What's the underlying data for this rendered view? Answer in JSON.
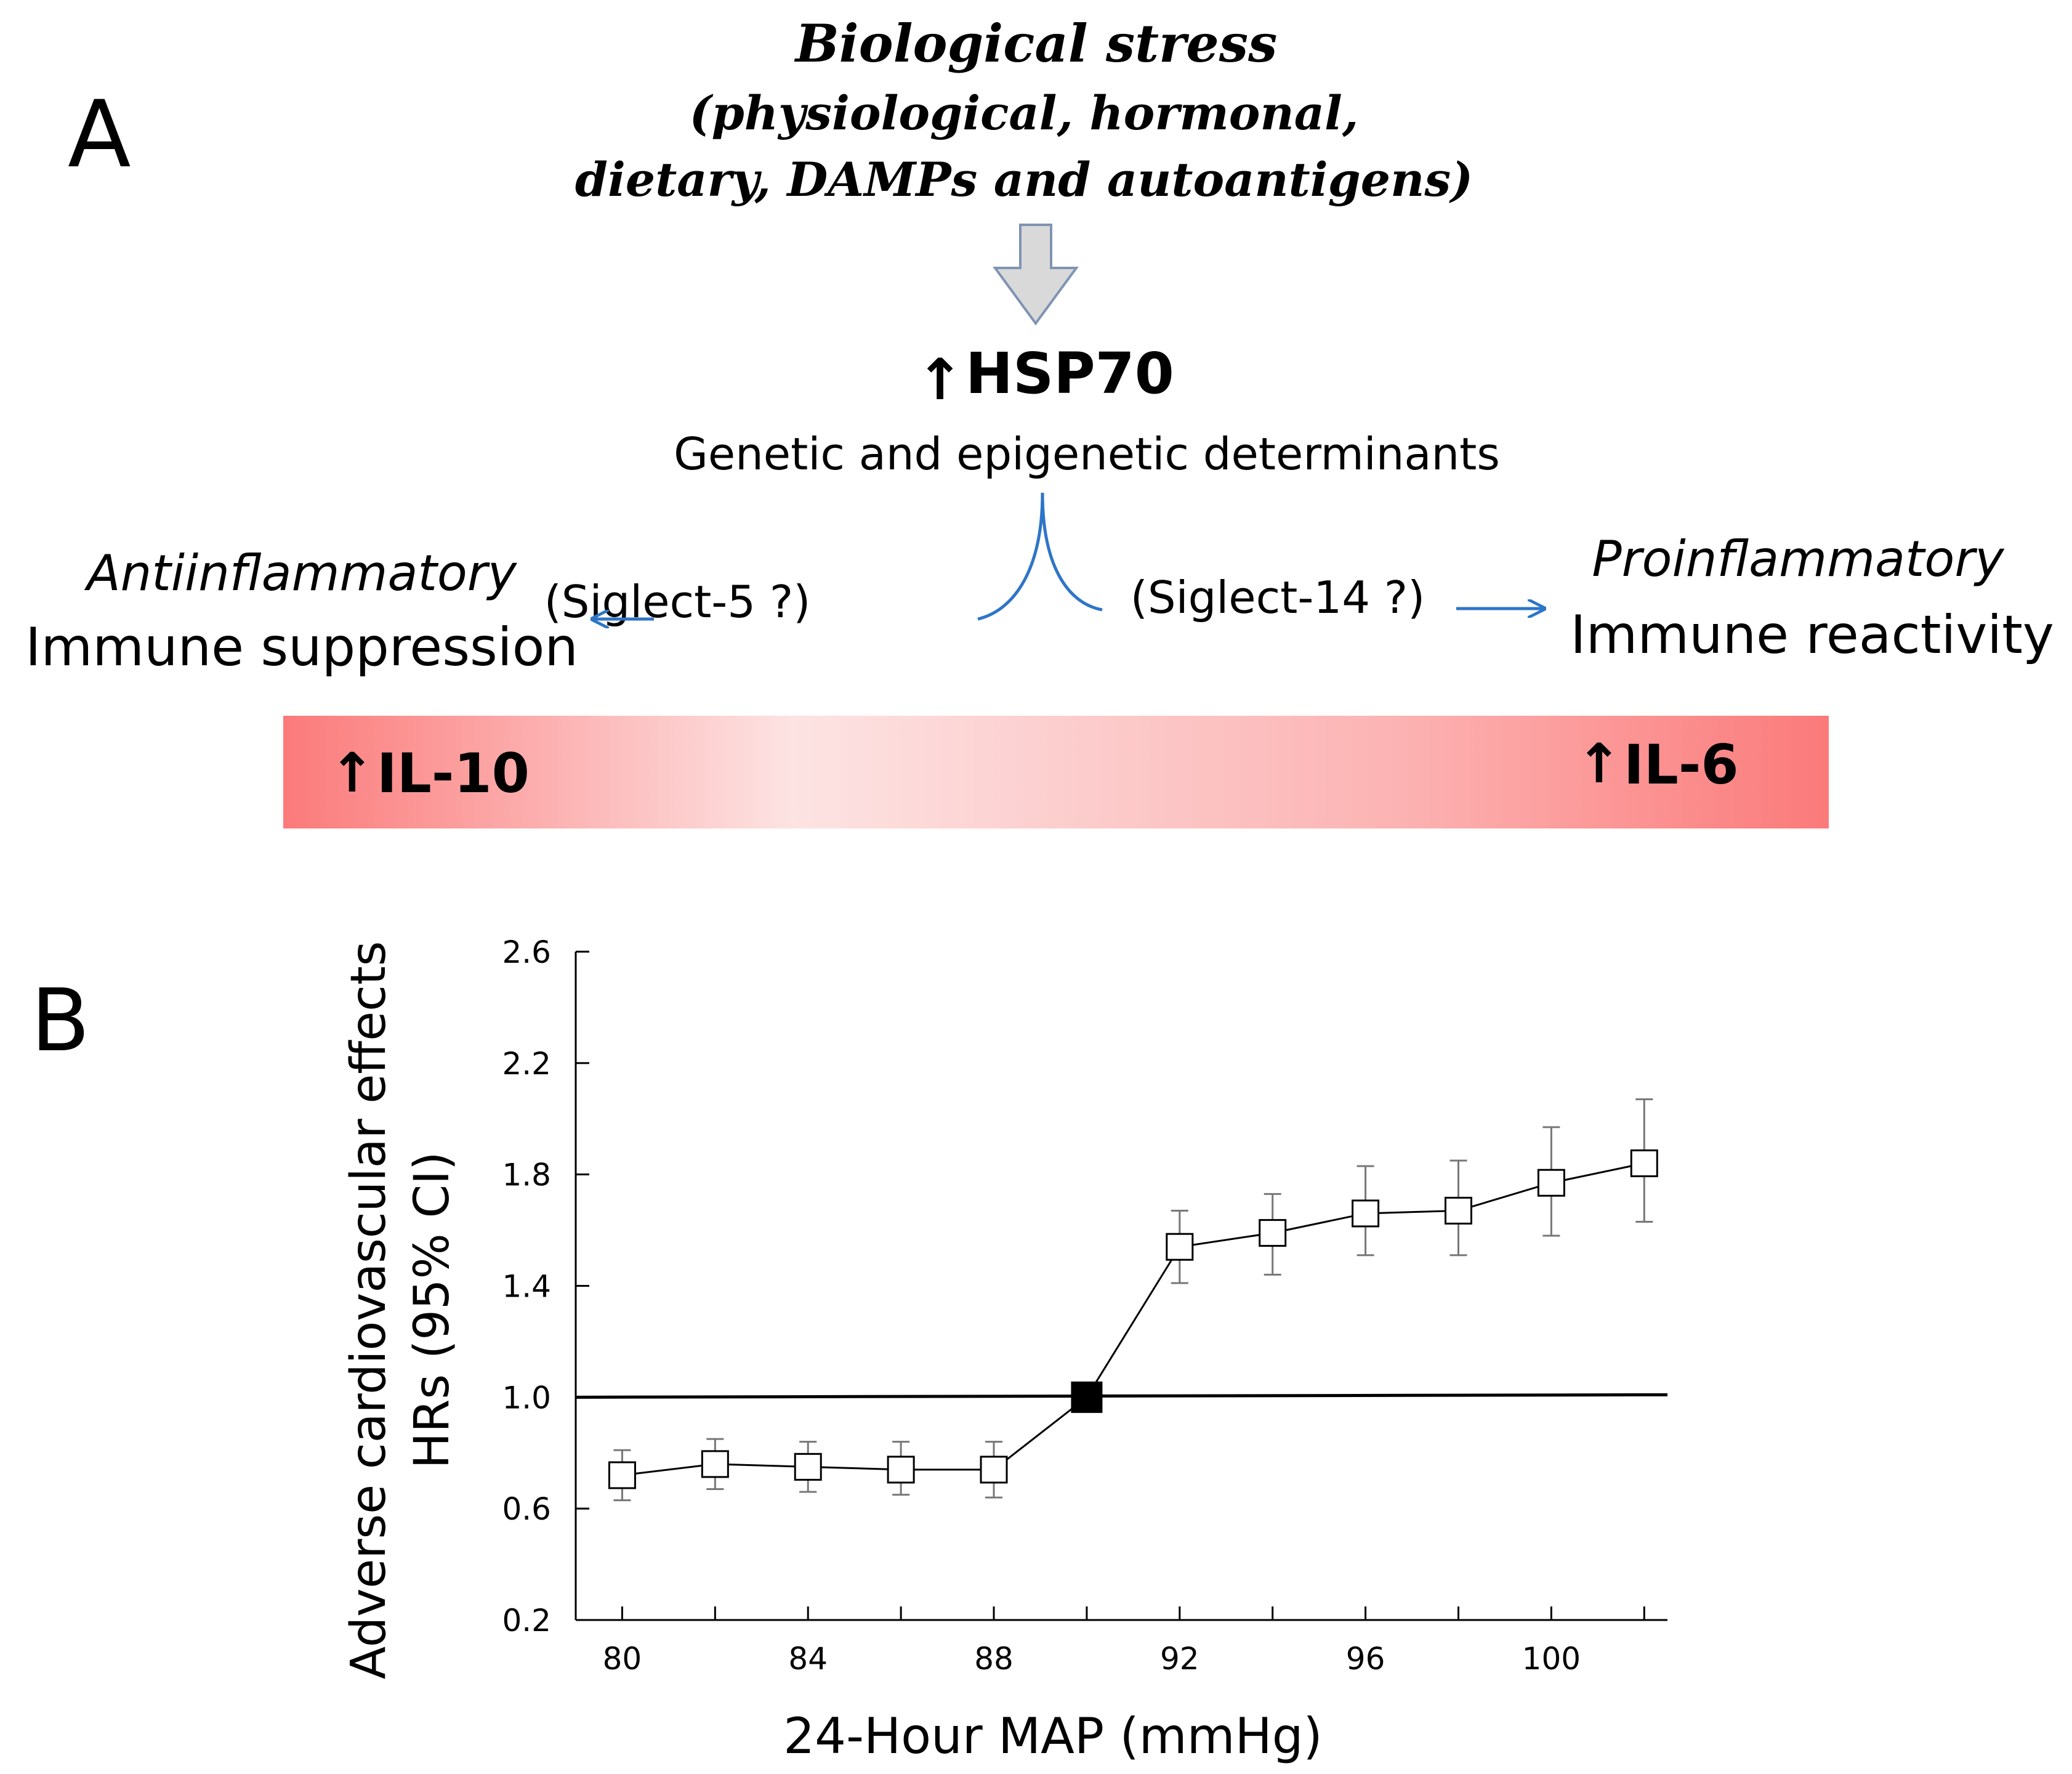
{
  "colors": {
    "arrow_blue": "#2e75c7",
    "gradient_edge": "#fb7a7a",
    "gradient_light": "#fde3e3",
    "big_arrow_fill": "#d9d9d9",
    "big_arrow_stroke": "#7f93b3"
  },
  "panel_a": {
    "letter": "A",
    "stress": {
      "title": "Biological stress",
      "line1": "(physiological, hormonal,",
      "line2": "dietary, DAMPs and  autoantigens)"
    },
    "hsp": {
      "arrow": "↑",
      "label": "HSP70",
      "subtitle": "Genetic and epigenetic determinants"
    },
    "left": {
      "italic": "Antiinflammatory",
      "label": "Immune suppression",
      "siglec": "(Siglect-5 ?)"
    },
    "right": {
      "italic": "Proinflammatory",
      "label": "Immune reactivity",
      "siglec": "(Siglect-14 ?)"
    },
    "bar": {
      "left_arrow": "↑",
      "left_label": "IL-10",
      "right_arrow": "↑",
      "right_label": "IL-6"
    }
  },
  "panel_b": {
    "letter": "B"
  },
  "chart_data": {
    "type": "line",
    "title": "",
    "xlabel": "24-Hour  MAP (mmHg)",
    "ylabel_line1": "Adverse cardiovascular effects",
    "ylabel_line2": "HRs (95% CI)",
    "xlim": [
      79,
      102.5
    ],
    "ylim": [
      0.2,
      2.6
    ],
    "xticks_major": [
      80,
      84,
      88,
      92,
      96,
      100
    ],
    "xticks_minor": [
      82,
      86,
      90,
      94,
      98,
      102
    ],
    "xtick_labels": [
      "80",
      "84",
      "88",
      "92",
      "96",
      "100"
    ],
    "yticks": [
      0.2,
      0.6,
      1.0,
      1.4,
      1.8,
      2.2,
      2.6
    ],
    "ytick_labels": [
      "0.2",
      "0.6",
      "1.0",
      "1.4",
      "1.8",
      "2.2",
      "2.6"
    ],
    "reference_line": 1.0,
    "reference_point": {
      "x": 90,
      "y": 1.0
    },
    "series": [
      {
        "name": "HR",
        "x": [
          80,
          82,
          84,
          86,
          88,
          90,
          92,
          94,
          96,
          98,
          100,
          102
        ],
        "y": [
          0.72,
          0.76,
          0.75,
          0.74,
          0.74,
          1.0,
          1.54,
          1.59,
          1.66,
          1.67,
          1.77,
          1.84
        ],
        "ci_low": [
          0.63,
          0.67,
          0.66,
          0.65,
          0.64,
          1.0,
          1.41,
          1.44,
          1.51,
          1.51,
          1.58,
          1.63
        ],
        "ci_high": [
          0.81,
          0.85,
          0.84,
          0.84,
          0.84,
          1.0,
          1.67,
          1.73,
          1.83,
          1.85,
          1.97,
          2.07
        ]
      }
    ]
  }
}
